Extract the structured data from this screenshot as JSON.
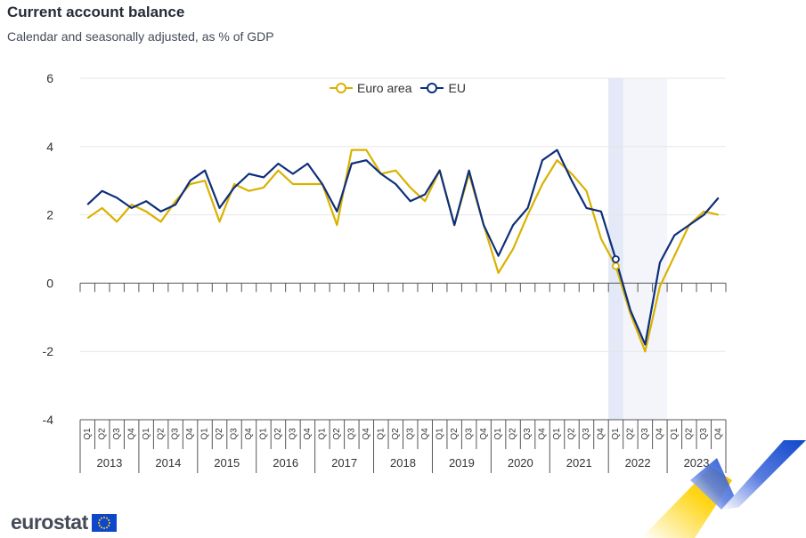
{
  "title": "Current account balance",
  "subtitle": "Calendar and seasonally adjusted, as % of GDP",
  "logo": "eurostat",
  "colors": {
    "euro_area": "#d9b200",
    "eu": "#0e2f7a",
    "highlight": "#e3e9f6",
    "shade": "#f3f5fa",
    "grid": "#e6e6e6",
    "text": "#333333"
  },
  "chart_data": {
    "type": "line",
    "title": "Current account balance",
    "subtitle": "Calendar and seasonally adjusted, as % of GDP",
    "ylim": [
      -4,
      6
    ],
    "yticks": [
      -4,
      -2,
      0,
      2,
      4,
      6
    ],
    "grid": true,
    "legend_position": "top-center",
    "quarters": [
      "Q1",
      "Q2",
      "Q3",
      "Q4"
    ],
    "years": [
      "2013",
      "2014",
      "2015",
      "2016",
      "2017",
      "2018",
      "2019",
      "2020",
      "2021",
      "2022",
      "2023"
    ],
    "highlight": "2022 Q1",
    "shaded_period": "2022",
    "series": [
      {
        "name": "Euro area",
        "values": [
          1.9,
          2.2,
          1.8,
          2.3,
          2.1,
          1.8,
          2.4,
          2.9,
          3.0,
          1.8,
          2.9,
          2.7,
          2.8,
          3.3,
          2.9,
          2.9,
          2.9,
          1.7,
          3.9,
          3.9,
          3.2,
          3.3,
          2.8,
          2.4,
          3.3,
          1.7,
          3.2,
          1.7,
          0.3,
          1.0,
          2.0,
          2.9,
          3.6,
          3.2,
          2.7,
          1.3,
          0.5,
          -0.9,
          -2.0,
          -0.1,
          0.8,
          1.7,
          2.1,
          2.0
        ]
      },
      {
        "name": "EU",
        "values": [
          2.3,
          2.7,
          2.5,
          2.2,
          2.4,
          2.1,
          2.3,
          3.0,
          3.3,
          2.2,
          2.8,
          3.2,
          3.1,
          3.5,
          3.2,
          3.5,
          2.9,
          2.1,
          3.5,
          3.6,
          3.2,
          2.9,
          2.4,
          2.6,
          3.3,
          1.7,
          3.3,
          1.7,
          0.8,
          1.7,
          2.2,
          3.6,
          3.9,
          3.0,
          2.2,
          2.1,
          0.7,
          -0.8,
          -1.8,
          0.6,
          1.4,
          1.7,
          2.0,
          2.5
        ]
      }
    ]
  }
}
